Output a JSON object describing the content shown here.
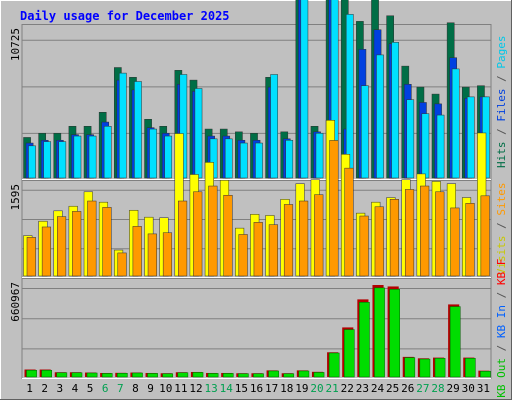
{
  "chart_data": {
    "type": "bar",
    "title": "Daily usage for December 2025",
    "categories": [
      "1",
      "2",
      "3",
      "4",
      "5",
      "6",
      "7",
      "8",
      "9",
      "10",
      "11",
      "12",
      "13",
      "14",
      "15",
      "16",
      "17",
      "18",
      "19",
      "20",
      "21",
      "22",
      "23",
      "24",
      "25",
      "26",
      "27",
      "28",
      "29",
      "30",
      "31"
    ],
    "weekend_days": [
      "6",
      "7",
      "13",
      "14",
      "20",
      "21",
      "27",
      "28"
    ],
    "panels": [
      {
        "id": "hits",
        "ytick": "10725",
        "ymax": 10725,
        "series": [
          {
            "name": "Hits",
            "color": "#006e46",
            "values": [
              2900,
              3200,
              3200,
              3700,
              3700,
              4700,
              7900,
              7200,
              4200,
              3700,
              7700,
              7000,
              3500,
              3500,
              3300,
              3200,
              7200,
              3300,
              14500,
              3700,
              14500,
              14500,
              11200,
              12800,
              11600,
              8000,
              6500,
              6000,
              11100,
              6500,
              6600
            ]
          },
          {
            "name": "Files",
            "color": "#0040e0",
            "values": [
              2500,
              2700,
              2700,
              3100,
              3100,
              4000,
              7000,
              6300,
              3600,
              3200,
              6700,
              6200,
              3000,
              3000,
              2700,
              2700,
              6500,
              2800,
              13300,
              3300,
              13300,
              3500,
              9200,
              10600,
              9600,
              6700,
              5400,
              5300,
              8600,
              5700,
              5800
            ]
          },
          {
            "name": "Pages",
            "color": "#00e0ff",
            "values": [
              2300,
              2600,
              2600,
              3000,
              3000,
              3700,
              7500,
              6900,
              3500,
              3000,
              7400,
              6400,
              2800,
              2800,
              2500,
              2500,
              7400,
              2700,
              13700,
              3200,
              13500,
              11700,
              6600,
              8800,
              9700,
              5600,
              4600,
              4500,
              7800,
              5800,
              5800
            ]
          }
        ]
      },
      {
        "id": "visits",
        "ytick": "1595",
        "ymax": 1595,
        "series": [
          {
            "name": "Visits",
            "color": "#ffff00",
            "values": [
              700,
              950,
              1130,
              1210,
              1460,
              1280,
              450,
              1140,
              1020,
              1010,
              2470,
              1760,
              1970,
              1660,
              830,
              1070,
              1050,
              1330,
              1600,
              1670,
              2700,
              2110,
              1090,
              1280,
              1360,
              1670,
              1770,
              1640,
              1600,
              1360,
              2480
            ]
          },
          {
            "name": "Sites",
            "color": "#ff9900",
            "values": [
              670,
              850,
              1030,
              1120,
              1300,
              1190,
              400,
              860,
              730,
              750,
              1300,
              1460,
              1560,
              1400,
              720,
              930,
              890,
              1240,
              1300,
              1410,
              2350,
              1870,
              1040,
              1200,
              1330,
              1500,
              1560,
              1460,
              1180,
              1260,
              1390
            ]
          }
        ]
      },
      {
        "id": "kbytes",
        "ytick": "660967",
        "ymax": 660967,
        "series": [
          {
            "name": "KB F",
            "color": "#ff0000",
            "values": [
              0,
              0,
              0,
              0,
              0,
              0,
              0,
              0,
              0,
              0,
              0,
              0,
              0,
              0,
              0,
              0,
              0,
              0,
              0,
              0,
              0,
              0,
              0,
              0,
              0,
              0,
              0,
              0,
              0,
              0,
              0
            ]
          },
          {
            "name": "KB In",
            "color": "#0060ff",
            "values": [
              0,
              0,
              0,
              0,
              0,
              0,
              0,
              0,
              0,
              0,
              0,
              0,
              0,
              0,
              0,
              0,
              0,
              0,
              0,
              0,
              0,
              0,
              0,
              0,
              0,
              0,
              0,
              0,
              0,
              0,
              0
            ]
          },
          {
            "name": "KB Out",
            "color": "#00dd00",
            "values": [
              47000,
              47000,
              30000,
              30000,
              28000,
              25000,
              26000,
              28000,
              25000,
              23000,
              30000,
              32000,
              25000,
              25000,
              23000,
              23000,
              42000,
              23000,
              42000,
              32000,
              167000,
              330000,
              520000,
              620000,
              610000,
              135000,
              125000,
              130000,
              490000,
              130000,
              40000
            ]
          },
          {
            "name": "KB Out shade",
            "color": "#b30000",
            "values": [
              52000,
              52000,
              33000,
              33000,
              31000,
              28000,
              29000,
              31000,
              28000,
              26000,
              33000,
              35000,
              28000,
              28000,
              26000,
              26000,
              46000,
              26000,
              46000,
              36000,
              172000,
              345000,
              540000,
              640000,
              630000,
              140000,
              130000,
              135000,
              505000,
              135000,
              44000
            ]
          }
        ]
      }
    ],
    "legends": {
      "hits": [
        {
          "text": "Hits",
          "color": "#006e46"
        },
        {
          "text": " / ",
          "color": "#555555"
        },
        {
          "text": "Files",
          "color": "#0040e0"
        },
        {
          "text": " / ",
          "color": "#555555"
        },
        {
          "text": "Pages",
          "color": "#00c8e8"
        }
      ],
      "visits": [
        {
          "text": "Visits",
          "color": "#c8c800"
        },
        {
          "text": " / ",
          "color": "#555555"
        },
        {
          "text": "Sites",
          "color": "#ff9900"
        }
      ],
      "kbytes": [
        {
          "text": "KB Out",
          "color": "#00c000"
        },
        {
          "text": " / ",
          "color": "#555555"
        },
        {
          "text": "KB In",
          "color": "#0060ff"
        },
        {
          "text": " / ",
          "color": "#555555"
        },
        {
          "text": "KB F",
          "color": "#ff0000"
        }
      ]
    },
    "colors": {
      "background": "#c0c0c0",
      "frame": "#ffffff",
      "title": "#0000ff",
      "weekday_label": "#000000",
      "weekend_label": "#00a050",
      "grid": "#808080"
    }
  }
}
